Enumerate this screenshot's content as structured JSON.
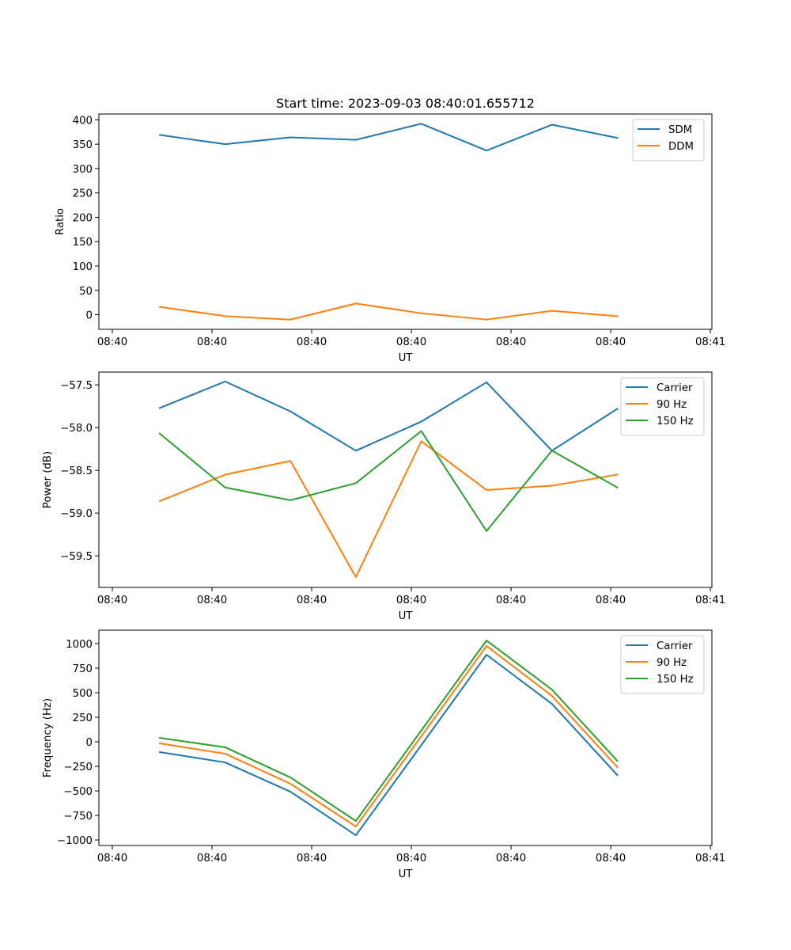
{
  "figure": {
    "title": "Start time: 2023-09-03 08:40:01.655712"
  },
  "chart_data": [
    {
      "type": "line",
      "title": "Start time: 2023-09-03 08:40:01.655712",
      "xlabel": "UT",
      "ylabel": "Ratio",
      "x_unit": "seconds after 08:40:00 UT",
      "xlim": [
        -1.35,
        60.15
      ],
      "x_ticks": [
        0,
        10,
        20,
        30,
        40,
        50,
        60
      ],
      "x_tick_labels": [
        "08:40",
        "08:40",
        "08:40",
        "08:40",
        "08:40",
        "08:40",
        "08:41"
      ],
      "ylim": [
        -30,
        412
      ],
      "y_ticks": [
        0,
        50,
        100,
        150,
        200,
        250,
        300,
        350,
        400
      ],
      "y_tick_labels": [
        "0",
        "50",
        "100",
        "150",
        "200",
        "250",
        "300",
        "350",
        "400"
      ],
      "legend": "top-right",
      "grid": false,
      "x": [
        4.76,
        11.32,
        17.87,
        24.43,
        30.99,
        37.54,
        44.1,
        50.66
      ],
      "series": [
        {
          "name": "SDM",
          "color": "#1f77b4",
          "values": [
            369,
            350,
            364,
            359,
            392,
            337,
            390,
            363
          ]
        },
        {
          "name": "DDM",
          "color": "#ff7f0e",
          "values": [
            16,
            -3,
            -10,
            23,
            3,
            -10,
            8,
            -3
          ]
        }
      ]
    },
    {
      "type": "line",
      "title": "",
      "xlabel": "UT",
      "ylabel": "Power (dB)",
      "x_unit": "seconds after 08:40:00 UT",
      "xlim": [
        -1.35,
        60.15
      ],
      "x_ticks": [
        0,
        10,
        20,
        30,
        40,
        50,
        60
      ],
      "x_tick_labels": [
        "08:40",
        "08:40",
        "08:40",
        "08:40",
        "08:40",
        "08:40",
        "08:41"
      ],
      "ylim": [
        -59.87,
        -57.35
      ],
      "y_ticks": [
        -57.5,
        -58.0,
        -58.5,
        -59.0,
        -59.5
      ],
      "y_tick_labels": [
        "−57.5",
        "−58.0",
        "−58.5",
        "−59.0",
        "−59.5"
      ],
      "legend": "top-right",
      "grid": false,
      "x": [
        4.76,
        11.32,
        17.87,
        24.43,
        30.99,
        37.54,
        44.1,
        50.66
      ],
      "series": [
        {
          "name": "Carrier",
          "color": "#1f77b4",
          "values": [
            -57.77,
            -57.46,
            -57.81,
            -58.27,
            -57.93,
            -57.47,
            -58.27,
            -57.78
          ]
        },
        {
          "name": "90 Hz",
          "color": "#ff7f0e",
          "values": [
            -58.86,
            -58.55,
            -58.39,
            -59.75,
            -58.16,
            -58.73,
            -58.68,
            -58.55
          ]
        },
        {
          "name": "150 Hz",
          "color": "#2ca02c",
          "values": [
            -58.07,
            -58.7,
            -58.85,
            -58.65,
            -58.04,
            -59.21,
            -58.27,
            -58.7
          ]
        }
      ]
    },
    {
      "type": "line",
      "title": "",
      "xlabel": "UT",
      "ylabel": "Frequency (Hz)",
      "x_unit": "seconds after 08:40:00 UT",
      "xlim": [
        -1.35,
        60.15
      ],
      "x_ticks": [
        0,
        10,
        20,
        30,
        40,
        50,
        60
      ],
      "x_tick_labels": [
        "08:40",
        "08:40",
        "08:40",
        "08:40",
        "08:40",
        "08:40",
        "08:41"
      ],
      "ylim": [
        -1056,
        1137
      ],
      "y_ticks": [
        1000,
        750,
        500,
        250,
        0,
        -250,
        -500,
        -750,
        -1000
      ],
      "y_tick_labels": [
        "1000",
        "750",
        "500",
        "250",
        "0",
        "−250",
        "−500",
        "−750",
        "−1000"
      ],
      "legend": "top-right",
      "grid": false,
      "x": [
        4.76,
        11.32,
        17.87,
        24.43,
        30.99,
        37.54,
        44.1,
        50.66
      ],
      "series": [
        {
          "name": "Carrier",
          "color": "#1f77b4",
          "values": [
            -105,
            -210,
            -508,
            -952,
            -35,
            887,
            387,
            -339
          ]
        },
        {
          "name": "90 Hz",
          "color": "#ff7f0e",
          "values": [
            -16,
            -121,
            -427,
            -863,
            55,
            976,
            468,
            -258
          ]
        },
        {
          "name": "150 Hz",
          "color": "#2ca02c",
          "values": [
            40,
            -56,
            -363,
            -806,
            115,
            1032,
            532,
            -194
          ]
        }
      ]
    }
  ]
}
